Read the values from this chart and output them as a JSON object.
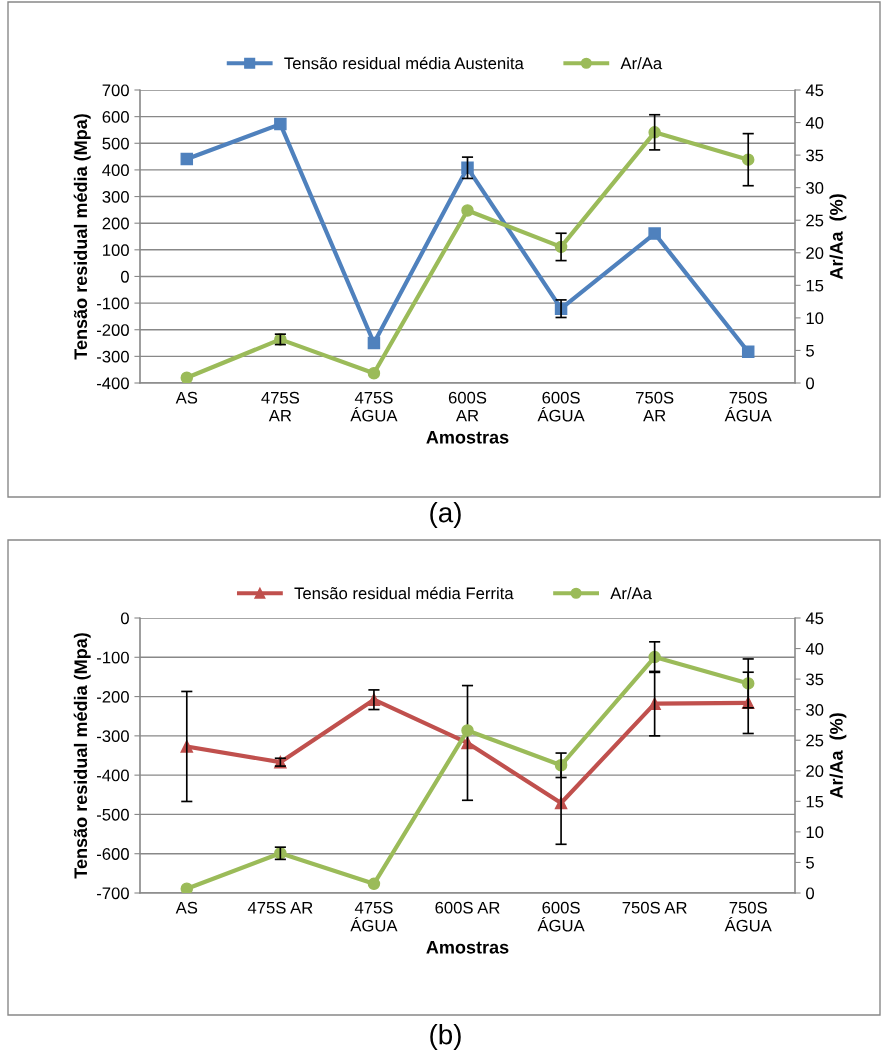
{
  "chart_data": [
    {
      "type": "line",
      "categories": [
        "AS",
        "475S\nAR",
        "475S\nÁGUA",
        "600S\nAR",
        "600S\nÁGUA",
        "750S\nAR",
        "750S\nÁGUA"
      ],
      "xlabel": "Amostras",
      "ylabel": "Tensão residual média (Mpa)",
      "y2label": "Ar/Aa  (%)",
      "ylim": [
        -400,
        700
      ],
      "yticks": [
        -400,
        -300,
        -200,
        -100,
        0,
        100,
        200,
        300,
        400,
        500,
        600,
        700
      ],
      "y2lim": [
        0,
        45
      ],
      "y2ticks": [
        0,
        5,
        10,
        15,
        20,
        25,
        30,
        35,
        40,
        45
      ],
      "grid": "y",
      "legend": "top",
      "annotations": [
        "(a)"
      ],
      "series": [
        {
          "name": "Tensão residual média Austenita",
          "color": "#4f81bd",
          "marker": "square",
          "values": [
            441,
            572,
            -250,
            408,
            -121,
            161,
            -283
          ],
          "errors": [
            null,
            null,
            null,
            40,
            33,
            null,
            null
          ]
        },
        {
          "name": "Ar/Aa",
          "color": "#9bbb59",
          "marker": "circle",
          "axis": "y2",
          "values": [
            0.8,
            6.7,
            1.5,
            26.5,
            20.9,
            38.5,
            34.3
          ],
          "errors": [
            null,
            0.8,
            null,
            null,
            2.1,
            2.7,
            4
          ]
        }
      ]
    },
    {
      "type": "line",
      "categories": [
        "AS",
        "475S AR",
        "475S\nÁGUA",
        "600S AR",
        "600S\nÁGUA",
        "750S AR",
        "750S\nÁGUA"
      ],
      "xlabel": "Amostras",
      "ylabel": "Tensão residual média (Mpa)",
      "y2label": "Ar/Aa  (%)",
      "ylim": [
        -700,
        0
      ],
      "yticks": [
        -700,
        -600,
        -500,
        -400,
        -300,
        -200,
        -100,
        0
      ],
      "y2lim": [
        0,
        45
      ],
      "y2ticks": [
        0,
        5,
        10,
        15,
        20,
        25,
        30,
        35,
        40,
        45
      ],
      "grid": "y",
      "legend": "top",
      "annotations": [
        "(b)"
      ],
      "series": [
        {
          "name": "Tensão residual média Ferrita",
          "color": "#c0504d",
          "marker": "triangle",
          "values": [
            -327,
            -367,
            -208,
            -318,
            -471,
            -218,
            -216
          ],
          "errors": [
            140,
            10,
            25,
            146,
            105,
            82,
            78
          ]
        },
        {
          "name": "Ar/Aa",
          "color": "#9bbb59",
          "marker": "circle",
          "axis": "y2",
          "values": [
            0.7,
            6.5,
            1.5,
            26.6,
            20.9,
            38.6,
            34.3
          ],
          "errors": [
            null,
            1,
            null,
            null,
            2,
            2.5,
            4
          ]
        }
      ]
    }
  ]
}
